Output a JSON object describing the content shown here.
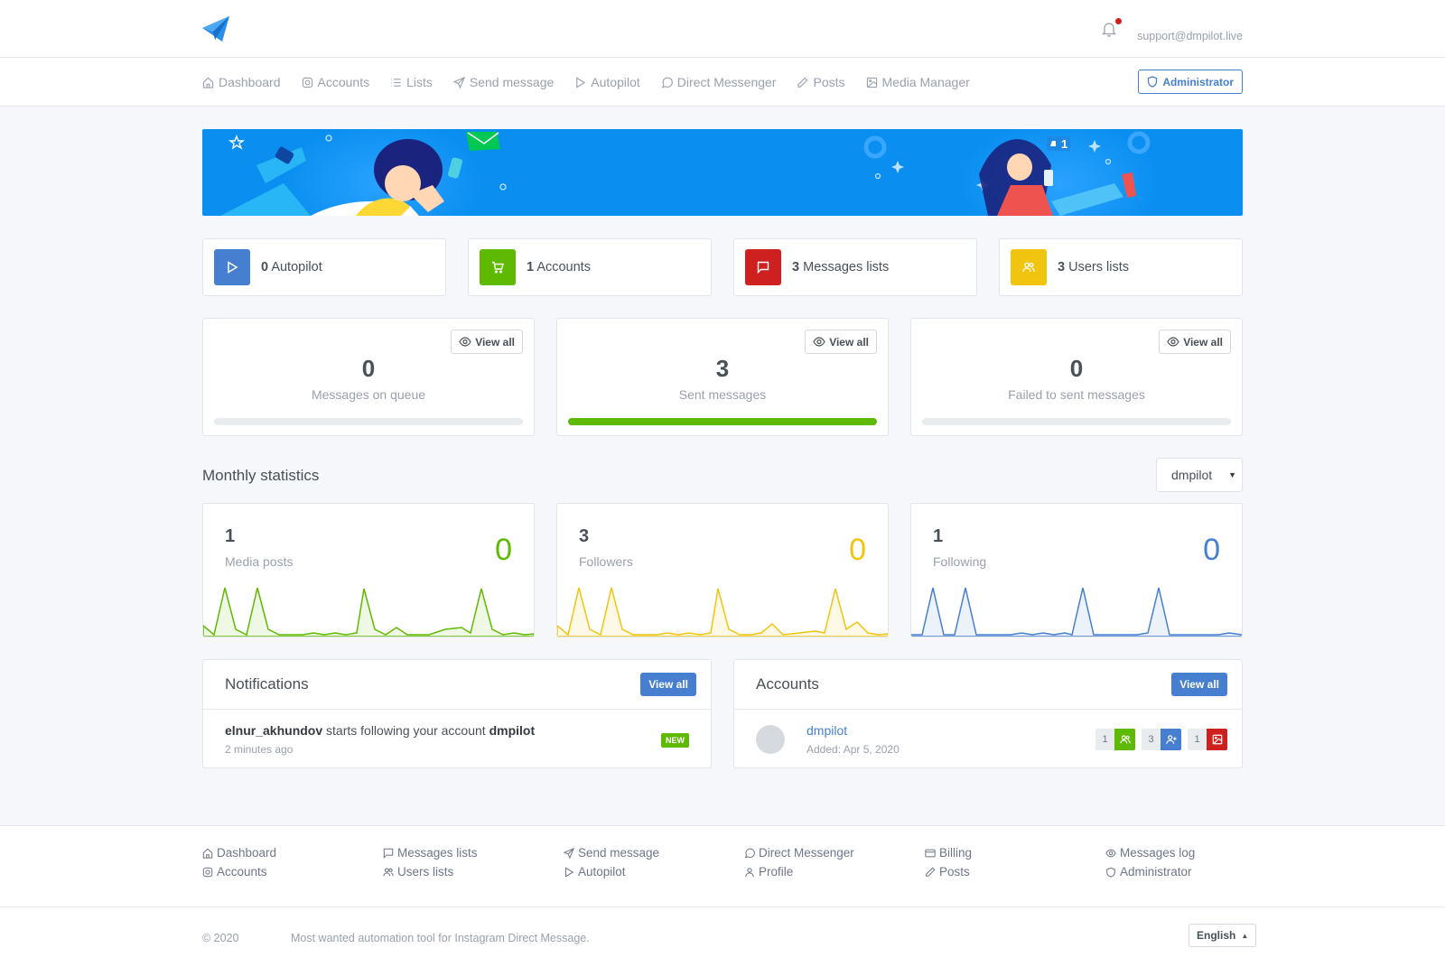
{
  "header": {
    "user_email": "support@dmpilot.live"
  },
  "nav": {
    "items": [
      {
        "label": "Dashboard",
        "icon": "home-icon"
      },
      {
        "label": "Accounts",
        "icon": "instagram-icon"
      },
      {
        "label": "Lists",
        "icon": "list-icon"
      },
      {
        "label": "Send message",
        "icon": "send-icon"
      },
      {
        "label": "Autopilot",
        "icon": "play-icon"
      },
      {
        "label": "Direct Messenger",
        "icon": "message-circle-icon"
      },
      {
        "label": "Posts",
        "icon": "pencil-icon"
      },
      {
        "label": "Media Manager",
        "icon": "image-icon"
      }
    ],
    "admin_label": "Administrator"
  },
  "stats": [
    {
      "count": "0",
      "label": "Autopilot",
      "color": "#467fcf",
      "icon": "play-icon"
    },
    {
      "count": "1",
      "label": "Accounts",
      "color": "#5eba00",
      "icon": "cart-icon"
    },
    {
      "count": "3",
      "label": "Messages lists",
      "color": "#cd201f",
      "icon": "message-square-icon"
    },
    {
      "count": "3",
      "label": "Users lists",
      "color": "#f1c40f",
      "icon": "users-icon"
    }
  ],
  "queue": [
    {
      "value": "0",
      "label": "Messages on queue",
      "view_all": "View all",
      "progress": 0
    },
    {
      "value": "3",
      "label": "Sent messages",
      "view_all": "View all",
      "progress": 100
    },
    {
      "value": "0",
      "label": "Failed to sent messages",
      "view_all": "View all",
      "progress": 0
    }
  ],
  "monthly": {
    "title": "Monthly statistics",
    "selected_account": "dmpilot",
    "cards": [
      {
        "value": "1",
        "label": "Media posts",
        "big": "0",
        "color": "#5eba00"
      },
      {
        "value": "3",
        "label": "Followers",
        "big": "0",
        "color": "#f1c40f"
      },
      {
        "value": "1",
        "label": "Following",
        "big": "0",
        "color": "#467fcf"
      }
    ]
  },
  "notifications": {
    "title": "Notifications",
    "view_all": "View all",
    "item": {
      "user": "elnur_akhundov",
      "text": " starts following your account ",
      "account": "dmpilot",
      "time": "2 minutes ago",
      "badge": "NEW"
    }
  },
  "accounts_panel": {
    "title": "Accounts",
    "view_all": "View all",
    "account": {
      "name": "dmpilot",
      "added": "Added: Apr 5, 2020",
      "tags": [
        {
          "count": "1",
          "color": "#5eba00",
          "icon": "users-icon"
        },
        {
          "count": "3",
          "color": "#467fcf",
          "icon": "user-plus-icon"
        },
        {
          "count": "1",
          "color": "#cd201f",
          "icon": "image-icon"
        }
      ]
    }
  },
  "footer": {
    "columns": [
      [
        {
          "label": "Dashboard",
          "icon": "home-icon"
        },
        {
          "label": "Accounts",
          "icon": "instagram-icon"
        }
      ],
      [
        {
          "label": "Messages lists",
          "icon": "message-square-icon"
        },
        {
          "label": "Users lists",
          "icon": "users-icon"
        }
      ],
      [
        {
          "label": "Send message",
          "icon": "send-icon"
        },
        {
          "label": "Autopilot",
          "icon": "play-icon"
        }
      ],
      [
        {
          "label": "Direct Messenger",
          "icon": "message-circle-icon"
        },
        {
          "label": "Profile",
          "icon": "user-icon"
        }
      ],
      [
        {
          "label": "Billing",
          "icon": "credit-card-icon"
        },
        {
          "label": "Posts",
          "icon": "pencil-icon"
        }
      ],
      [
        {
          "label": "Messages log",
          "icon": "eye-icon"
        },
        {
          "label": "Administrator",
          "icon": "shield-icon"
        }
      ]
    ],
    "copyright": "© 2020",
    "tagline": "Most wanted automation tool for Instagram Direct Message.",
    "language": "English"
  }
}
